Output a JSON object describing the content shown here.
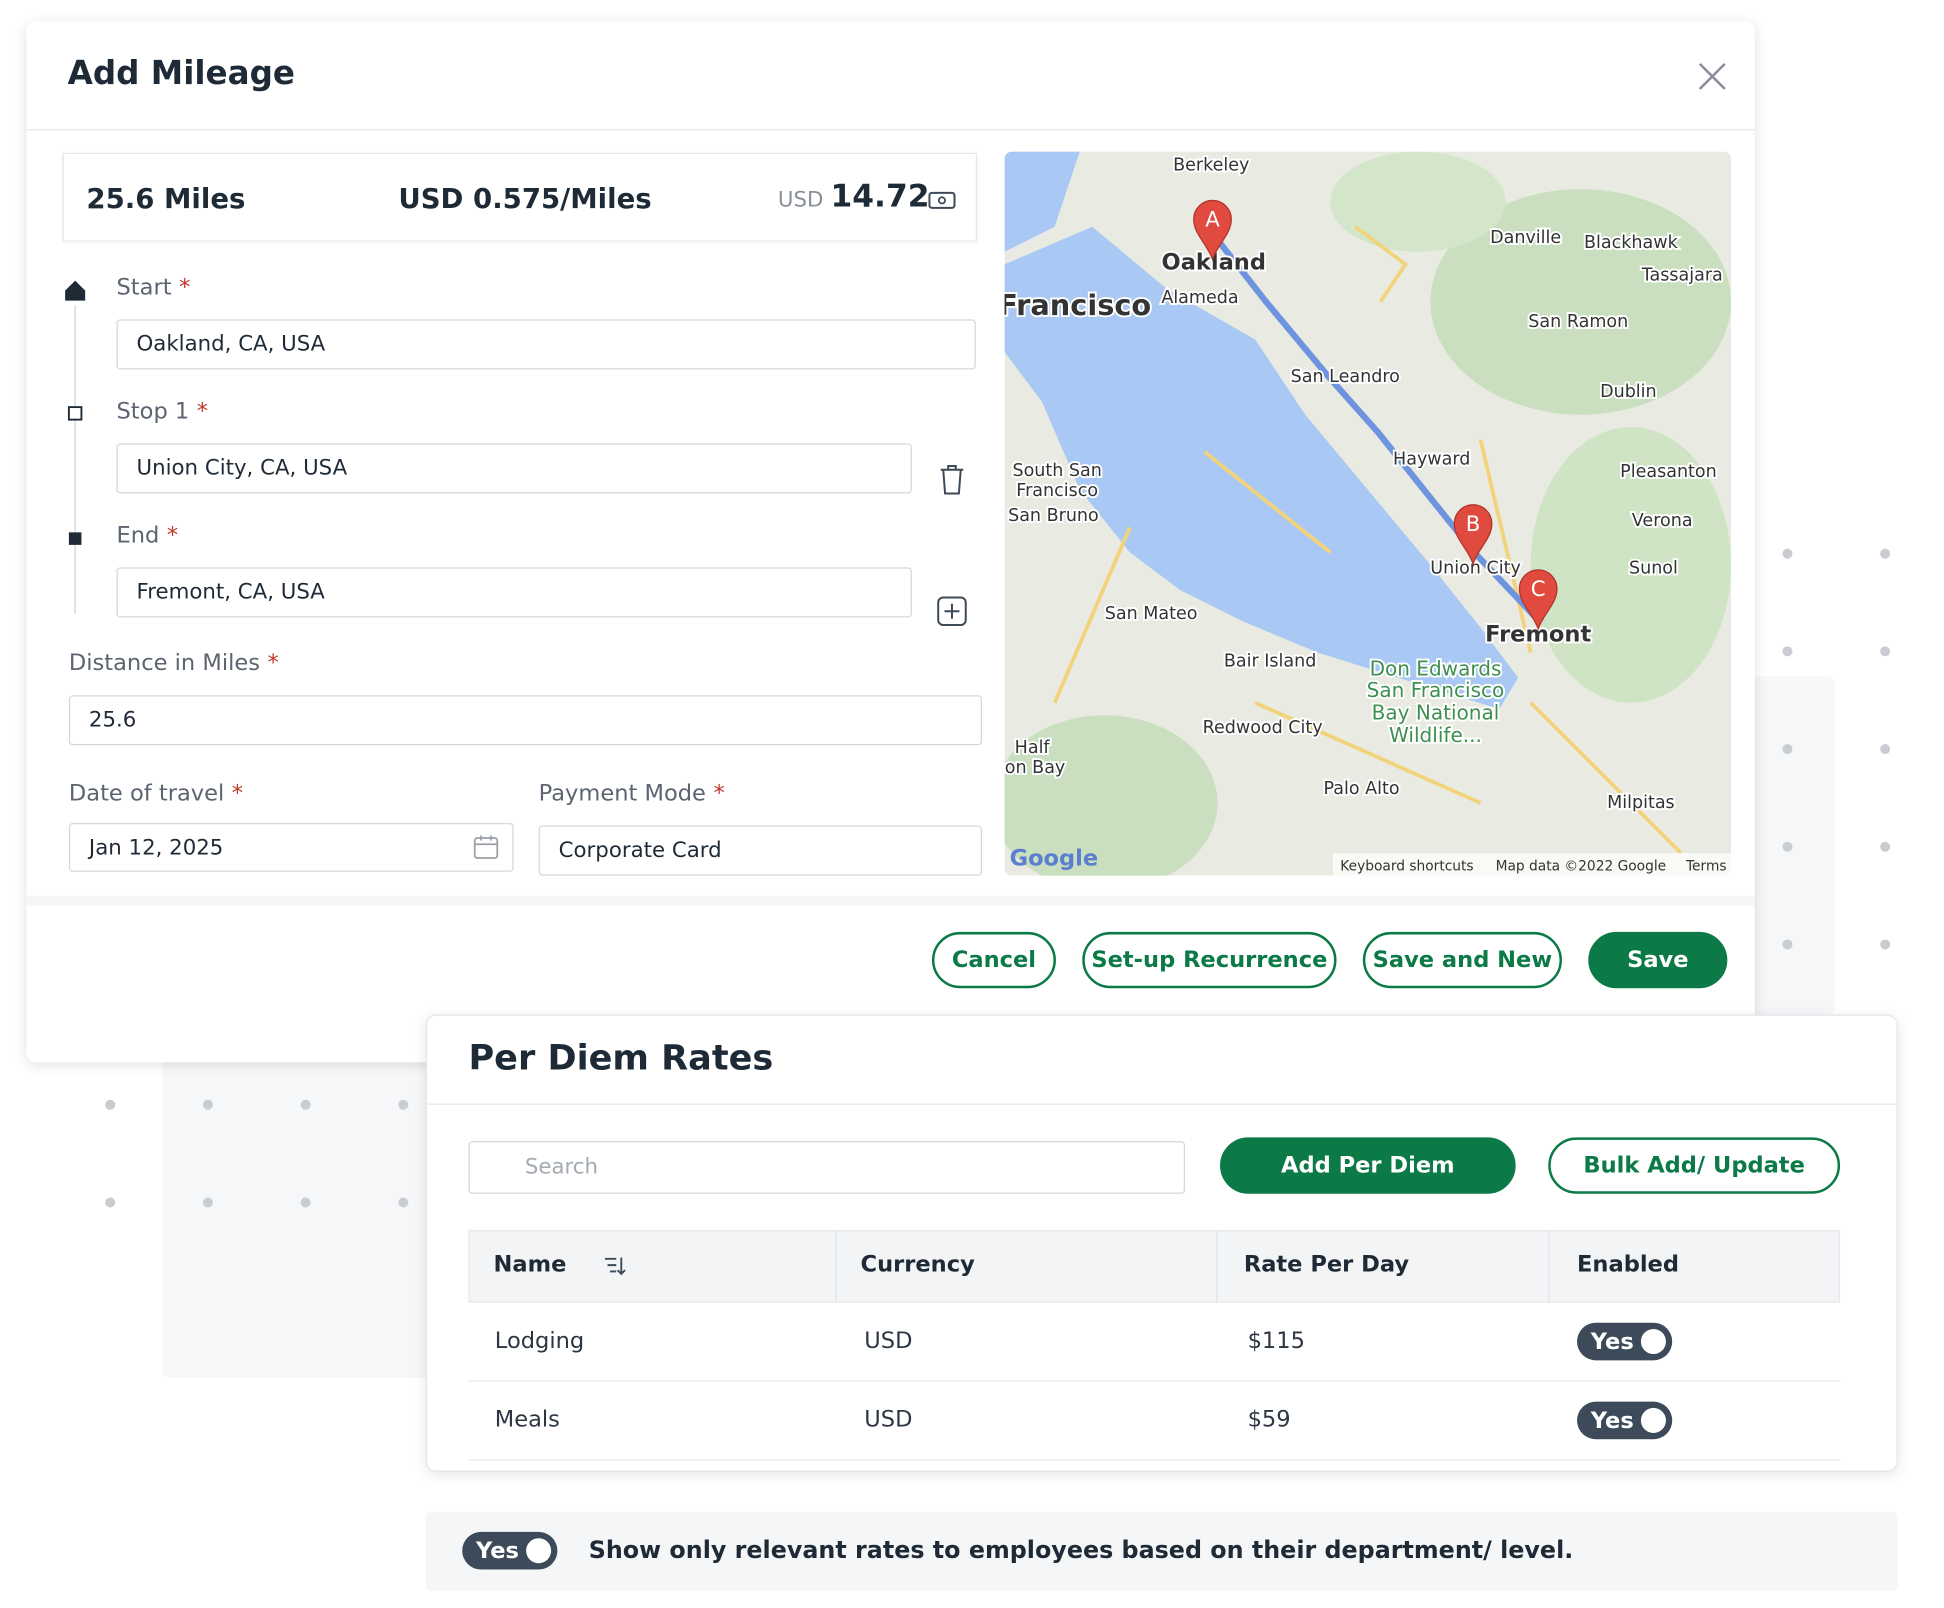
{
  "modal": {
    "title": "Add Mileage",
    "distance": "25.6 Miles",
    "rate": "USD 0.575/Miles",
    "total_currency": "USD",
    "total": "14.72",
    "required": "*",
    "fields": {
      "start_label": "Start",
      "start": "Oakland, CA, USA",
      "stop_label": "Stop 1",
      "stop": "Union City, CA, USA",
      "end_label": "End",
      "end": "Fremont, CA, USA",
      "distance_label": "Distance in Miles",
      "distance_value": "25.6",
      "date_label": "Date of travel",
      "date": "Jan 12, 2025",
      "payment_label": "Payment Mode",
      "payment": "Corporate Card"
    },
    "buttons": [
      "Cancel",
      "Set-up Recurrence",
      "Save and New",
      "Save"
    ]
  },
  "map": {
    "labels": [
      "Berkeley",
      "Oakland",
      "Alameda",
      "Francisco",
      "Danville",
      "Blackhawk",
      "Tassajara",
      "San Ramon",
      "San Leandro",
      "Dublin",
      "Hayward",
      "Pleasanton",
      "South San",
      "Francisco",
      "San Bruno",
      "Verona",
      "Union City",
      "Sunol",
      "San Mateo",
      "Fremont",
      "Bair Island",
      "Don Edwards",
      "San Francisco",
      "Bay National",
      "Wildlife...",
      "Redwood City",
      "Palo Alto",
      "Milpitas",
      "Half",
      "Moon Bay"
    ],
    "markers": [
      "A",
      "B",
      "C"
    ],
    "logo": "Google",
    "footer": [
      "Keyboard shortcuts",
      "Map data ©2022 Google",
      "Terms"
    ]
  },
  "per_diem": {
    "title": "Per Diem Rates",
    "search_placeholder": "Search",
    "buttons": [
      "Add Per Diem",
      "Bulk Add/ Update"
    ],
    "table": {
      "headers": [
        "Name",
        "Currency",
        "Rate Per Day",
        "Enabled"
      ],
      "rows": [
        [
          "Lodging",
          "USD",
          "$115",
          "Yes"
        ],
        [
          "Meals",
          "USD",
          "$59",
          "Yes"
        ]
      ]
    }
  },
  "footer_toggle": {
    "state": "Yes",
    "text": "Show only relevant rates to employees based on their department/ level."
  }
}
